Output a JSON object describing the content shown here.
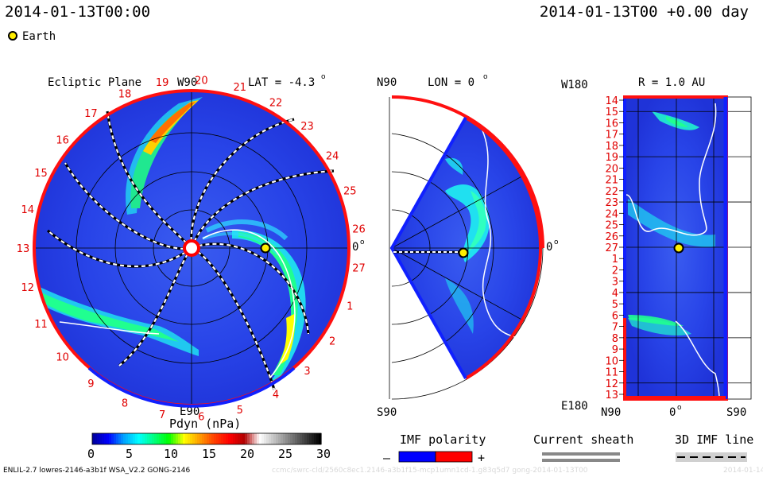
{
  "header": {
    "timestamp_left": "2014-01-13T00:00",
    "timestamp_right": "2014-01-13T00 +0.00 day",
    "earth_legend": "Earth"
  },
  "panels": {
    "ecliptic": {
      "title": "Ecliptic Plane",
      "lat_label": "LAT = -4.3",
      "lat_degree": "o",
      "top_label": "W90",
      "bottom_label": "E90",
      "right_label": "0",
      "right_degree": "o",
      "rim_numbers": [
        "19",
        "20",
        "21",
        "22",
        "23",
        "24",
        "25",
        "26",
        "27",
        "1",
        "2",
        "3",
        "4",
        "5",
        "6",
        "7",
        "8",
        "9",
        "10",
        "11",
        "12",
        "13",
        "14",
        "15",
        "16",
        "17",
        "18"
      ]
    },
    "meridional": {
      "top_label": "N90",
      "lon_label": "LON = 0",
      "lon_degree": "o",
      "bottom_label": "S90",
      "right_label": "0",
      "right_degree": "o"
    },
    "synoptic": {
      "top_left_label": "W180",
      "r_label": "R = 1.0 AU",
      "bottom_left_label": "E180",
      "x_labels": [
        "N90",
        "0",
        "S90"
      ],
      "x_degree": "o",
      "rows": [
        "14",
        "15",
        "16",
        "17",
        "18",
        "19",
        "20",
        "21",
        "22",
        "23",
        "24",
        "25",
        "26",
        "27",
        "1",
        "2",
        "3",
        "4",
        "5",
        "6",
        "7",
        "8",
        "9",
        "10",
        "11",
        "12",
        "13"
      ]
    }
  },
  "colorbar": {
    "title": "Pdyn (nPa)",
    "ticks": [
      "0",
      "5",
      "10",
      "15",
      "20",
      "25",
      "30"
    ],
    "colors": [
      "#0000a0",
      "#0000ff",
      "#00a0ff",
      "#00ffff",
      "#00ff80",
      "#00ff00",
      "#ffff00",
      "#ffa000",
      "#ff4000",
      "#ff0000",
      "#b00000",
      "#ffffff",
      "#c0c0c0",
      "#808080",
      "#404040",
      "#000000"
    ]
  },
  "legends": {
    "imf_title": "IMF polarity",
    "imf_minus": "–",
    "imf_plus": "+",
    "imf_negative_color": "#0000ff",
    "imf_positive_color": "#ff0000",
    "current_sheath": "Current sheath",
    "imf_line": "3D IMF line"
  },
  "footer": {
    "model_info": "ENLIL-2.7 lowres-2146-a3b1f WSA_V2.2 GONG-2146",
    "watermark": "ccmc/swrc-cld/2560c8ec1.2146-a3b1f15-mcp1umn1cd-1.g83q5d7 gong-2014-01-13T00",
    "watermark_date": "2014-01-14"
  },
  "colors": {
    "background_field": "#2038e8",
    "negative_sector": "#0000ff",
    "positive_sector": "#ff0000"
  }
}
